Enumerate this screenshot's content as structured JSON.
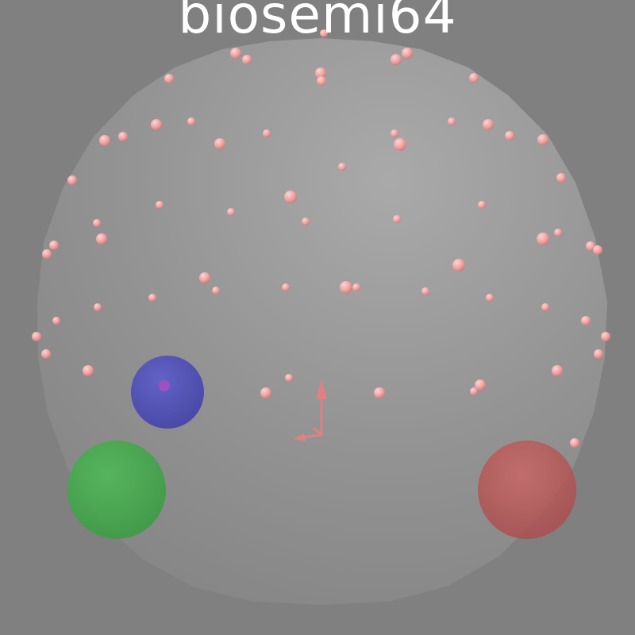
{
  "title": "biosemi64",
  "colors": {
    "background": "#808080",
    "head_sphere": "#9c9c9c",
    "electrode": "#f2a3a3",
    "fiducial_nasion": "#4a4ac0",
    "fiducial_lpa": "#3fa84a",
    "fiducial_rpa": "#c05858",
    "axes": "#e08080",
    "title_text": "#ffffff"
  },
  "icons": {
    "coordinate_axes": "xyz-axes-icon"
  },
  "scene": {
    "head_model": "sphere",
    "electrode_marker": "small-sphere",
    "fiducials": [
      "nasion",
      "lpa",
      "rpa"
    ]
  }
}
